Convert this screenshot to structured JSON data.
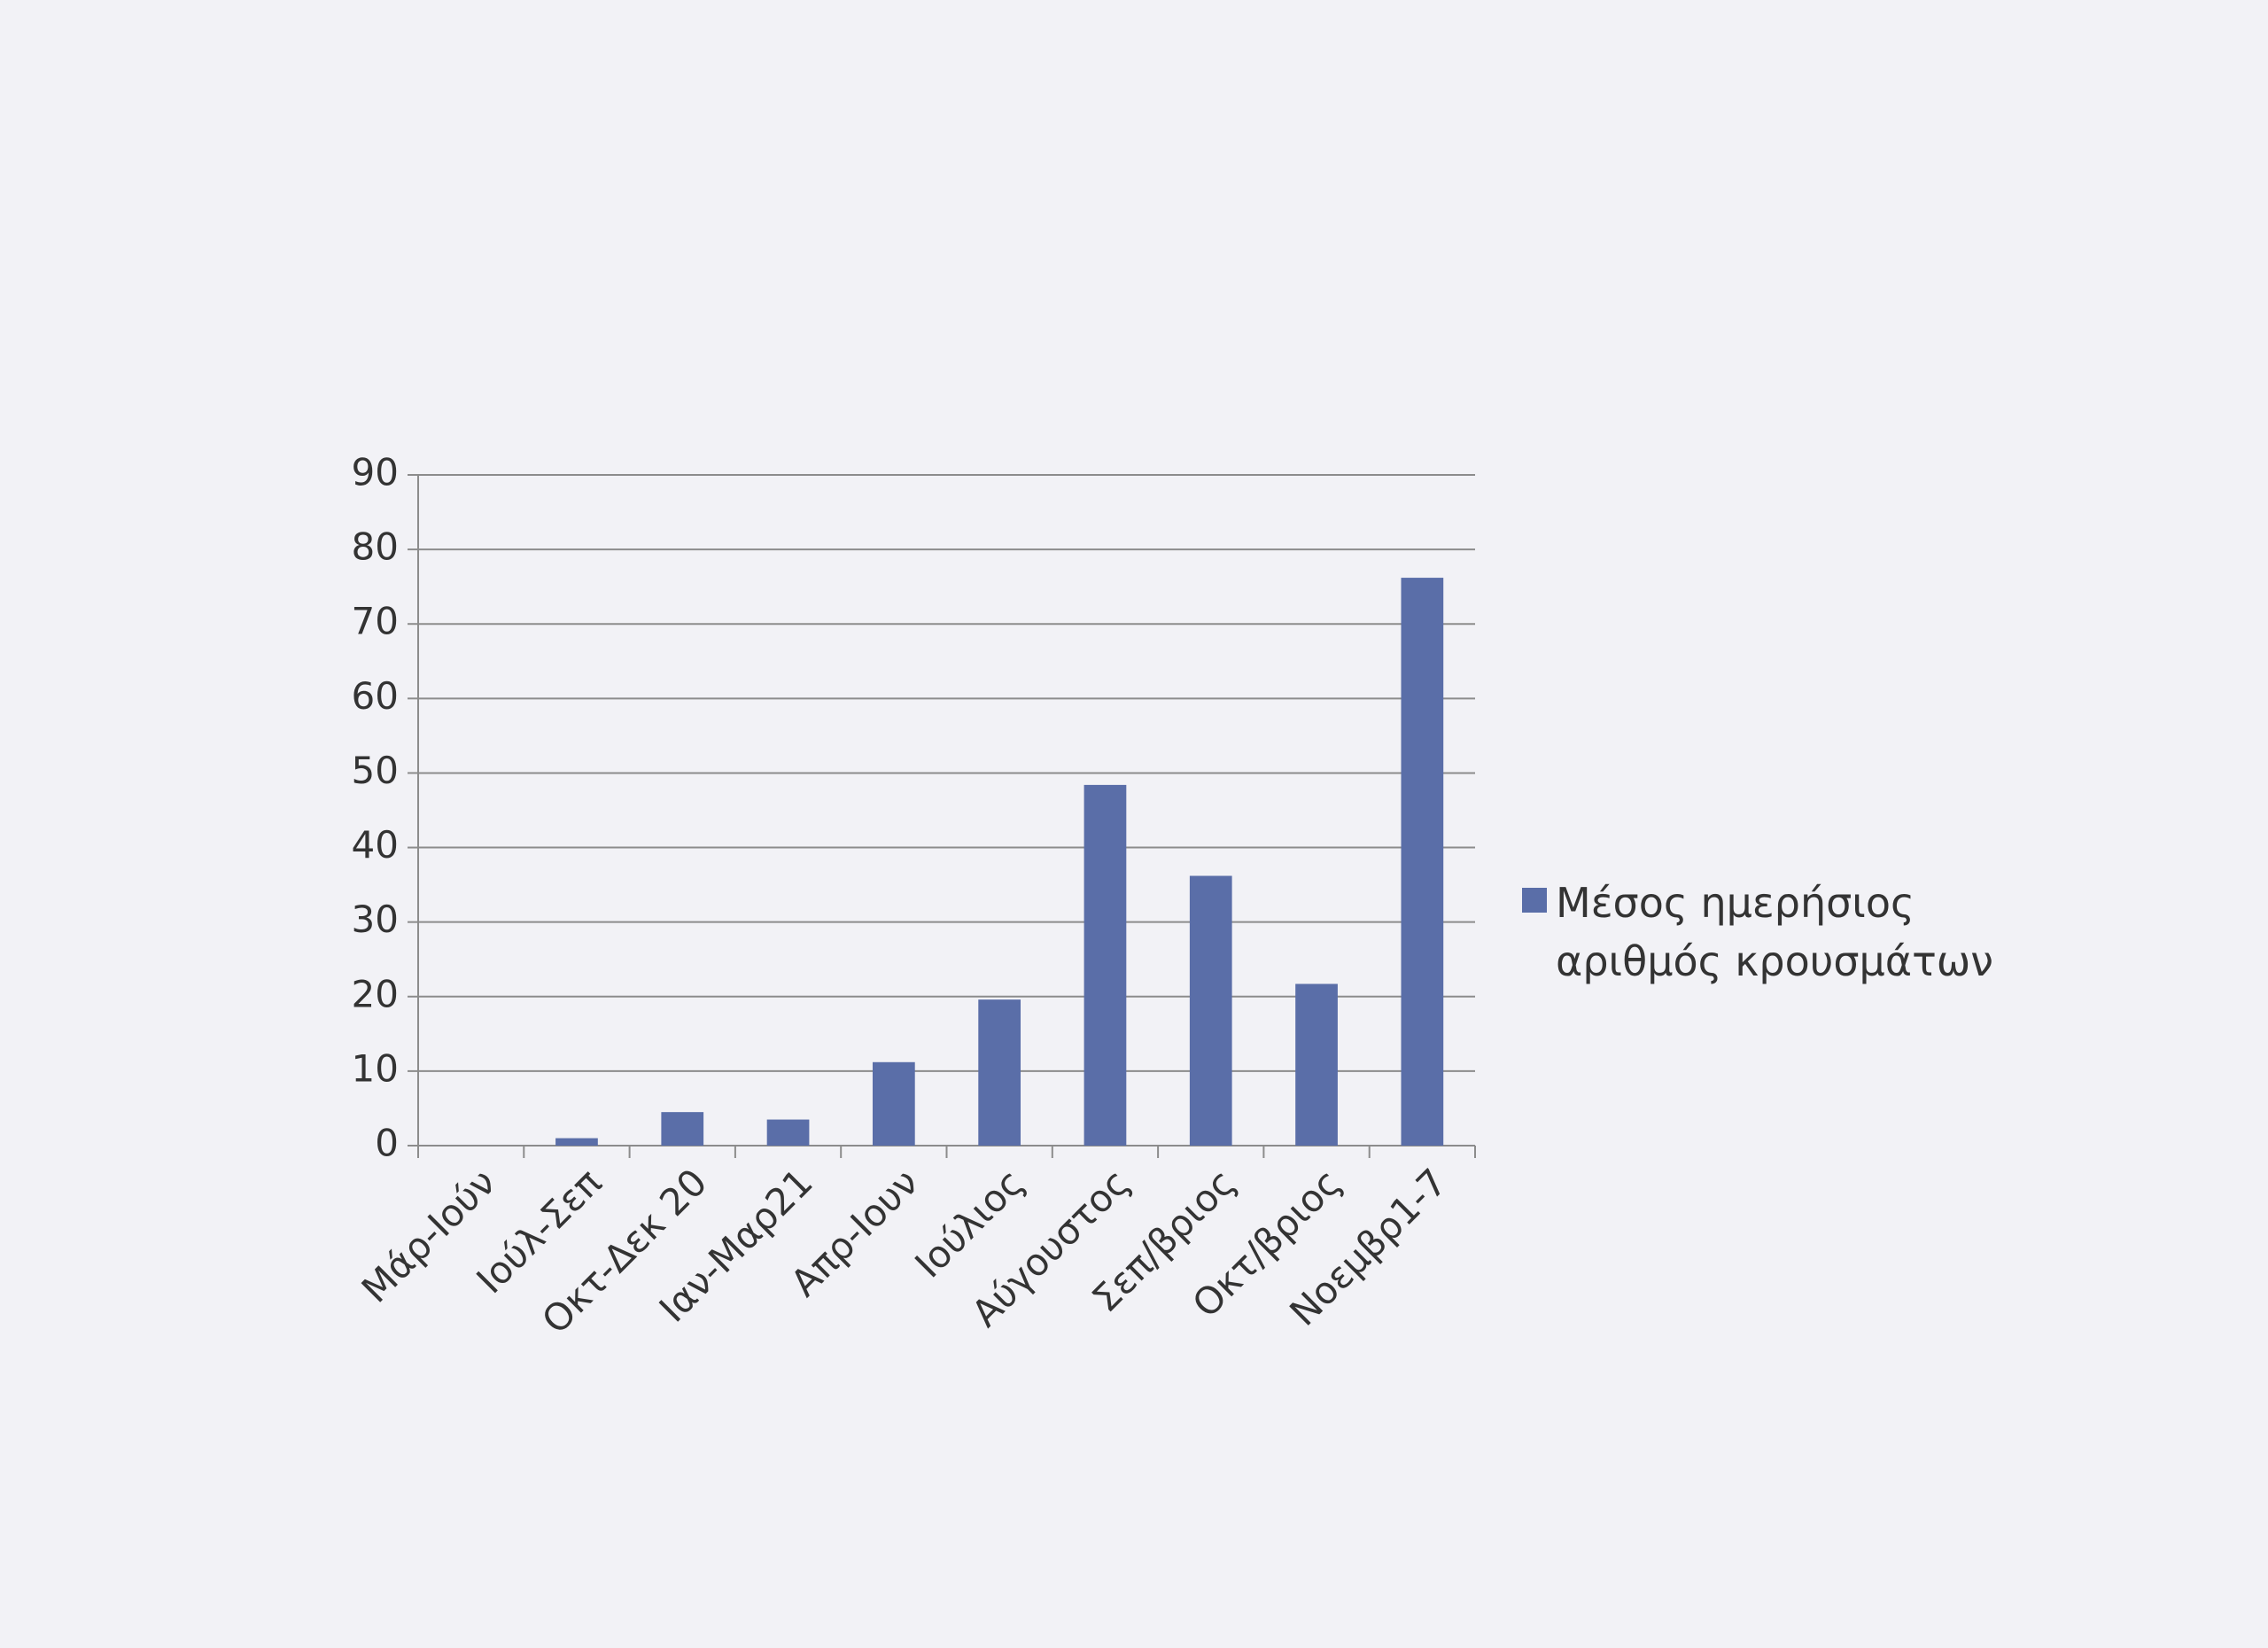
{
  "chart_data": {
    "type": "bar",
    "categories": [
      "Μάρ-Ιούν",
      "Ιούλ-Σεπ",
      "Οκτ-Δεκ 20",
      "Ιαν-Μαρ21",
      "Απρ-Ιουν",
      "Ιούλιος",
      "Αύγουστος",
      "Σεπ/βριος",
      "Οκτ/βριος",
      "Νοεμβρ1-7"
    ],
    "series": [
      {
        "name": "Μέσος ημερήσιος αριθμός κρουσμάτων",
        "color": "#5a6ea8",
        "values": [
          0,
          1,
          4.5,
          3.5,
          11.2,
          19.6,
          48.4,
          36.2,
          21.7,
          76.2
        ]
      }
    ],
    "ylim": [
      0,
      90
    ],
    "yticks": [
      0,
      10,
      20,
      30,
      40,
      50,
      60,
      70,
      80,
      90
    ],
    "grid": true,
    "legend": "right"
  }
}
